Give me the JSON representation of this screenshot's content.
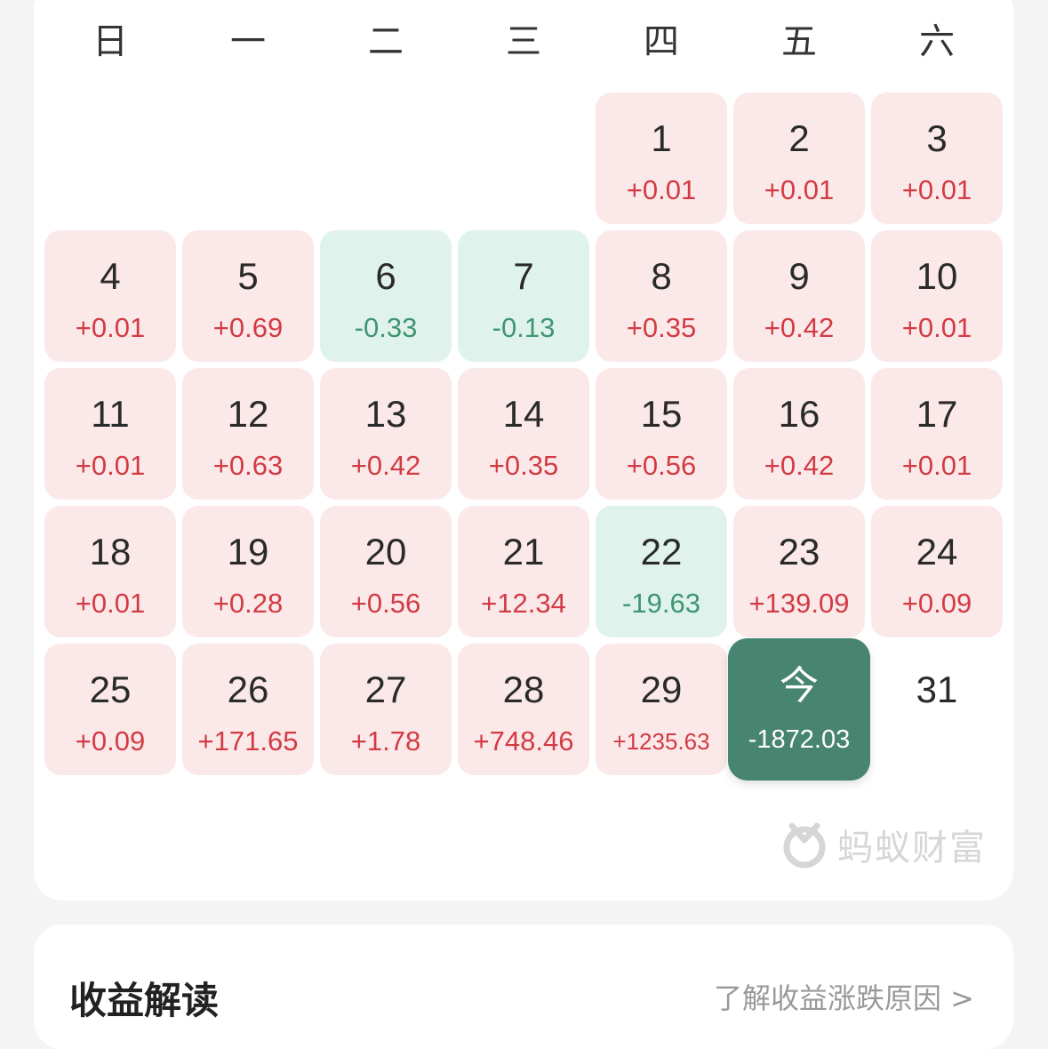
{
  "weekdays": [
    "日",
    "一",
    "二",
    "三",
    "四",
    "五",
    "六"
  ],
  "calendar": {
    "days": [
      {
        "day": "1",
        "change": "+0.01",
        "trend": "up"
      },
      {
        "day": "2",
        "change": "+0.01",
        "trend": "up"
      },
      {
        "day": "3",
        "change": "+0.01",
        "trend": "up"
      },
      {
        "day": "4",
        "change": "+0.01",
        "trend": "up"
      },
      {
        "day": "5",
        "change": "+0.69",
        "trend": "up"
      },
      {
        "day": "6",
        "change": "-0.33",
        "trend": "down"
      },
      {
        "day": "7",
        "change": "-0.13",
        "trend": "down"
      },
      {
        "day": "8",
        "change": "+0.35",
        "trend": "up"
      },
      {
        "day": "9",
        "change": "+0.42",
        "trend": "up"
      },
      {
        "day": "10",
        "change": "+0.01",
        "trend": "up"
      },
      {
        "day": "11",
        "change": "+0.01",
        "trend": "up"
      },
      {
        "day": "12",
        "change": "+0.63",
        "trend": "up"
      },
      {
        "day": "13",
        "change": "+0.42",
        "trend": "up"
      },
      {
        "day": "14",
        "change": "+0.35",
        "trend": "up"
      },
      {
        "day": "15",
        "change": "+0.56",
        "trend": "up"
      },
      {
        "day": "16",
        "change": "+0.42",
        "trend": "up"
      },
      {
        "day": "17",
        "change": "+0.01",
        "trend": "up"
      },
      {
        "day": "18",
        "change": "+0.01",
        "trend": "up"
      },
      {
        "day": "19",
        "change": "+0.28",
        "trend": "up"
      },
      {
        "day": "20",
        "change": "+0.56",
        "trend": "up"
      },
      {
        "day": "21",
        "change": "+12.34",
        "trend": "up"
      },
      {
        "day": "22",
        "change": "-19.63",
        "trend": "down"
      },
      {
        "day": "23",
        "change": "+139.09",
        "trend": "up"
      },
      {
        "day": "24",
        "change": "+0.09",
        "trend": "up"
      },
      {
        "day": "25",
        "change": "+0.09",
        "trend": "up"
      },
      {
        "day": "26",
        "change": "+171.65",
        "trend": "up"
      },
      {
        "day": "27",
        "change": "+1.78",
        "trend": "up"
      },
      {
        "day": "28",
        "change": "+748.46",
        "trend": "up"
      },
      {
        "day": "29",
        "change": "+1235.63",
        "trend": "up"
      },
      {
        "day": "今",
        "change": "-1872.03",
        "trend": "today"
      },
      {
        "day": "31",
        "change": "",
        "trend": "none"
      }
    ]
  },
  "colors": {
    "up_text": "#d23b44",
    "up_bg": "#fbe9e9",
    "down_text": "#3f9572",
    "down_bg": "#dff3ec",
    "today_bg": "#478570"
  },
  "brand": {
    "name": "蚂蚁财富",
    "icon": "ant-fortune-logo-icon"
  },
  "analysis_section": {
    "title": "收益解读",
    "link_label": "了解收益涨跌原因 >"
  }
}
